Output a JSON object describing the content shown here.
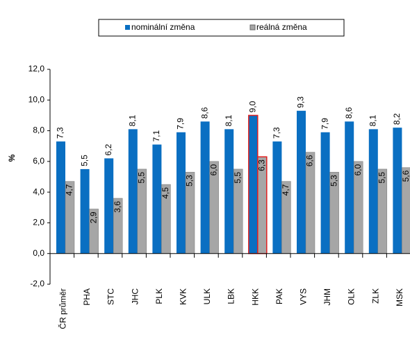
{
  "chart_data": {
    "type": "bar",
    "ylabel": "%",
    "categories": [
      "ČR průměr",
      "PHA",
      "STC",
      "JHC",
      "PLK",
      "KVK",
      "ULK",
      "LBK",
      "HKK",
      "PAK",
      "VYS",
      "JHM",
      "OLK",
      "ZLK",
      "MSK"
    ],
    "series": [
      {
        "name": "nominální změna",
        "color": "#0a6fc2",
        "values": [
          7.3,
          5.5,
          6.2,
          8.1,
          7.1,
          7.9,
          8.6,
          8.1,
          9.0,
          7.3,
          9.3,
          7.9,
          8.6,
          8.1,
          8.2
        ],
        "value_labels": [
          "7,3",
          "5,5",
          "6,2",
          "8,1",
          "7,1",
          "7,9",
          "8,6",
          "8,1",
          "9,0",
          "7,3",
          "9,3",
          "7,9",
          "8,6",
          "8,1",
          "8,2"
        ]
      },
      {
        "name": "reálná změna",
        "color": "#a6a6a6",
        "values": [
          4.7,
          2.9,
          3.6,
          5.5,
          4.5,
          5.3,
          6.0,
          5.5,
          6.3,
          4.7,
          6.6,
          5.3,
          6.0,
          5.5,
          5.6
        ],
        "value_labels": [
          "4,7",
          "2,9",
          "3,6",
          "5,5",
          "4,5",
          "5,3",
          "6,0",
          "5,5",
          "6,3",
          "4,7",
          "6,6",
          "5,3",
          "6,0",
          "5,5",
          "5,6"
        ]
      }
    ],
    "highlight_category": "HKK",
    "highlight_color": "#e02020",
    "ylim": [
      -2,
      12
    ],
    "yticks": [
      {
        "value": -2,
        "label": "-2,0"
      },
      {
        "value": 0,
        "label": "0,0"
      },
      {
        "value": 2,
        "label": "2,0"
      },
      {
        "value": 4,
        "label": "4,0"
      },
      {
        "value": 6,
        "label": "6,0"
      },
      {
        "value": 8,
        "label": "8,0"
      },
      {
        "value": 10,
        "label": "10,0"
      },
      {
        "value": 12,
        "label": "12,0"
      }
    ],
    "grid": false,
    "legend": "top"
  }
}
